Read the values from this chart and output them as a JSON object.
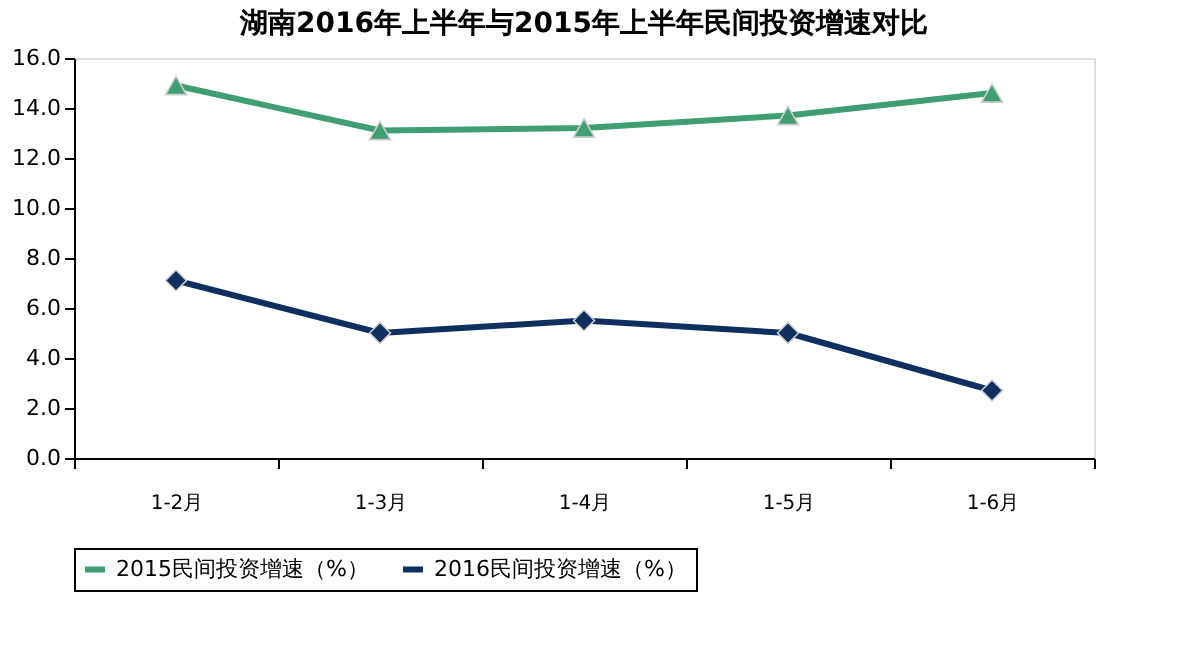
{
  "chart_data": {
    "type": "line",
    "title": "湖南2016年上半年与2015年上半年民间投资增速对比",
    "categories": [
      "1-2月",
      "1-3月",
      "1-4月",
      "1-5月",
      "1-6月"
    ],
    "series": [
      {
        "name": "2015民间投资增速（%）",
        "color": "#3f9e74",
        "marker": "triangle",
        "values": [
          14.9,
          13.1,
          13.2,
          13.7,
          14.6
        ]
      },
      {
        "name": "2016民间投资增速（%）",
        "color": "#0f2f5f",
        "marker": "diamond",
        "values": [
          7.1,
          5.0,
          5.5,
          5.0,
          2.7
        ]
      }
    ],
    "ylim": [
      0,
      16
    ],
    "yticks": [
      {
        "value": 0,
        "label": "0.0"
      },
      {
        "value": 2,
        "label": "2.0"
      },
      {
        "value": 4,
        "label": "4.0"
      },
      {
        "value": 6,
        "label": "6.0"
      },
      {
        "value": 8,
        "label": "8.0"
      },
      {
        "value": 10,
        "label": "10.0"
      },
      {
        "value": 12,
        "label": "12.0"
      },
      {
        "value": 14,
        "label": "14.0"
      },
      {
        "value": 16,
        "label": "16.0"
      }
    ],
    "grid": false,
    "legend": "bottom",
    "line_style": "solid"
  }
}
